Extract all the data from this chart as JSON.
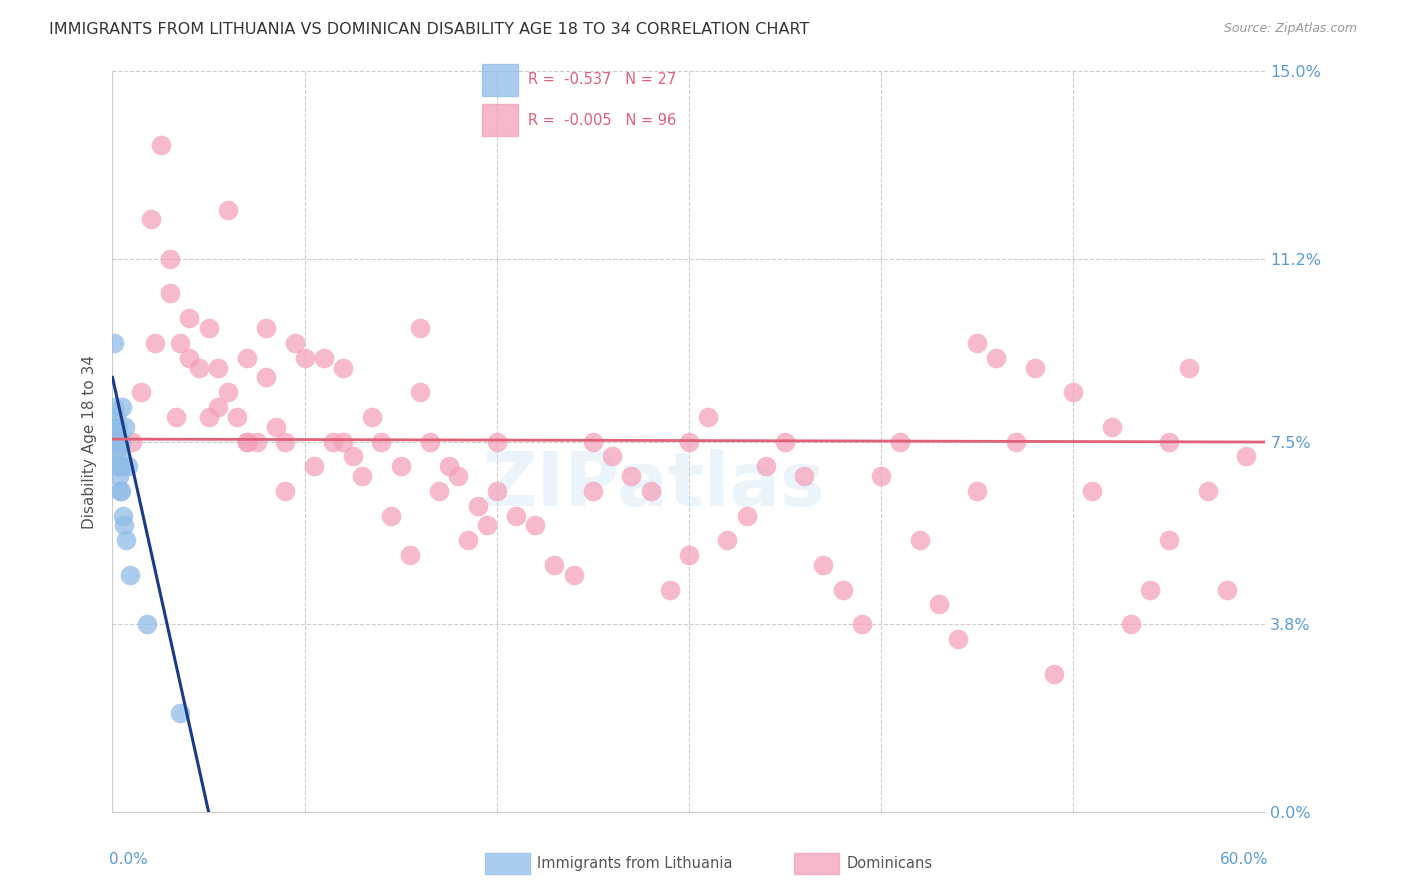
{
  "title": "IMMIGRANTS FROM LITHUANIA VS DOMINICAN DISABILITY AGE 18 TO 34 CORRELATION CHART",
  "source": "Source: ZipAtlas.com",
  "ylabel": "Disability Age 18 to 34",
  "yticks": [
    0.0,
    3.8,
    7.5,
    11.2,
    15.0
  ],
  "xlim": [
    0.0,
    60.0
  ],
  "ylim": [
    0.0,
    15.0
  ],
  "lithuania_color": "#90bce8",
  "dominican_color": "#f4a0b8",
  "lithuania_line_color": "#1a3a8a",
  "dominican_line_color": "#e0607a",
  "axis_label_color": "#5b9bd5",
  "title_color": "#333333",
  "title_fontsize": 11.5,
  "source_fontsize": 9,
  "ylabel_fontsize": 11,
  "tick_fontsize": 11,
  "lith_line_x0": 0.0,
  "lith_line_y0": 8.8,
  "lith_line_x1": 5.0,
  "lith_line_y1": 0.0,
  "lith_line_dash_x0": 4.5,
  "lith_line_dash_x1": 7.0,
  "dom_line_y": 7.55,
  "dom_line_x0": 0.0,
  "dom_line_x1": 60.0,
  "lith_scatter_x": [
    0.08,
    0.1,
    0.12,
    0.14,
    0.16,
    0.18,
    0.2,
    0.22,
    0.25,
    0.28,
    0.3,
    0.33,
    0.35,
    0.38,
    0.4,
    0.43,
    0.45,
    0.48,
    0.5,
    0.55,
    0.6,
    0.65,
    0.7,
    0.8,
    0.9,
    1.8,
    3.5
  ],
  "lith_scatter_y": [
    9.5,
    8.2,
    7.8,
    7.6,
    7.5,
    7.8,
    8.0,
    7.5,
    7.3,
    7.0,
    7.8,
    6.8,
    7.0,
    6.5,
    7.2,
    7.5,
    6.5,
    7.0,
    8.2,
    6.0,
    5.8,
    7.8,
    5.5,
    7.0,
    4.8,
    3.8,
    2.0
  ],
  "dom_scatter_x": [
    1.0,
    1.5,
    2.0,
    2.2,
    2.5,
    3.0,
    3.3,
    3.5,
    4.0,
    4.0,
    4.5,
    5.0,
    5.5,
    5.5,
    6.0,
    6.5,
    7.0,
    7.0,
    7.5,
    8.0,
    8.5,
    9.0,
    9.5,
    10.0,
    10.5,
    11.0,
    11.5,
    12.0,
    12.5,
    13.0,
    13.5,
    14.0,
    14.5,
    15.0,
    15.5,
    16.0,
    16.5,
    17.0,
    17.5,
    18.0,
    18.5,
    19.0,
    19.5,
    20.0,
    21.0,
    22.0,
    23.0,
    24.0,
    25.0,
    26.0,
    27.0,
    28.0,
    29.0,
    30.0,
    31.0,
    32.0,
    33.0,
    34.0,
    35.0,
    36.0,
    37.0,
    38.0,
    39.0,
    40.0,
    41.0,
    42.0,
    43.0,
    44.0,
    45.0,
    46.0,
    47.0,
    48.0,
    49.0,
    50.0,
    51.0,
    52.0,
    53.0,
    54.0,
    55.0,
    56.0,
    57.0,
    58.0,
    59.0,
    3.0,
    6.0,
    8.0,
    12.0,
    16.0,
    20.0,
    25.0,
    30.0,
    45.0,
    55.0,
    9.0,
    5.0,
    7.0
  ],
  "dom_scatter_y": [
    7.5,
    8.5,
    12.0,
    9.5,
    13.5,
    10.5,
    8.0,
    9.5,
    10.0,
    9.2,
    9.0,
    9.8,
    9.0,
    8.2,
    8.5,
    8.0,
    9.2,
    7.5,
    7.5,
    8.8,
    7.8,
    7.5,
    9.5,
    9.2,
    7.0,
    9.2,
    7.5,
    9.0,
    7.2,
    6.8,
    8.0,
    7.5,
    6.0,
    7.0,
    5.2,
    8.5,
    7.5,
    6.5,
    7.0,
    6.8,
    5.5,
    6.2,
    5.8,
    6.5,
    6.0,
    5.8,
    5.0,
    4.8,
    7.5,
    7.2,
    6.8,
    6.5,
    4.5,
    7.5,
    8.0,
    5.5,
    6.0,
    7.0,
    7.5,
    6.8,
    5.0,
    4.5,
    3.8,
    6.8,
    7.5,
    5.5,
    4.2,
    3.5,
    9.5,
    9.2,
    7.5,
    9.0,
    2.8,
    8.5,
    6.5,
    7.8,
    3.8,
    4.5,
    5.5,
    9.0,
    6.5,
    4.5,
    7.2,
    11.2,
    12.2,
    9.8,
    7.5,
    9.8,
    7.5,
    6.5,
    5.2,
    6.5,
    7.5,
    6.5,
    8.0,
    7.5
  ]
}
